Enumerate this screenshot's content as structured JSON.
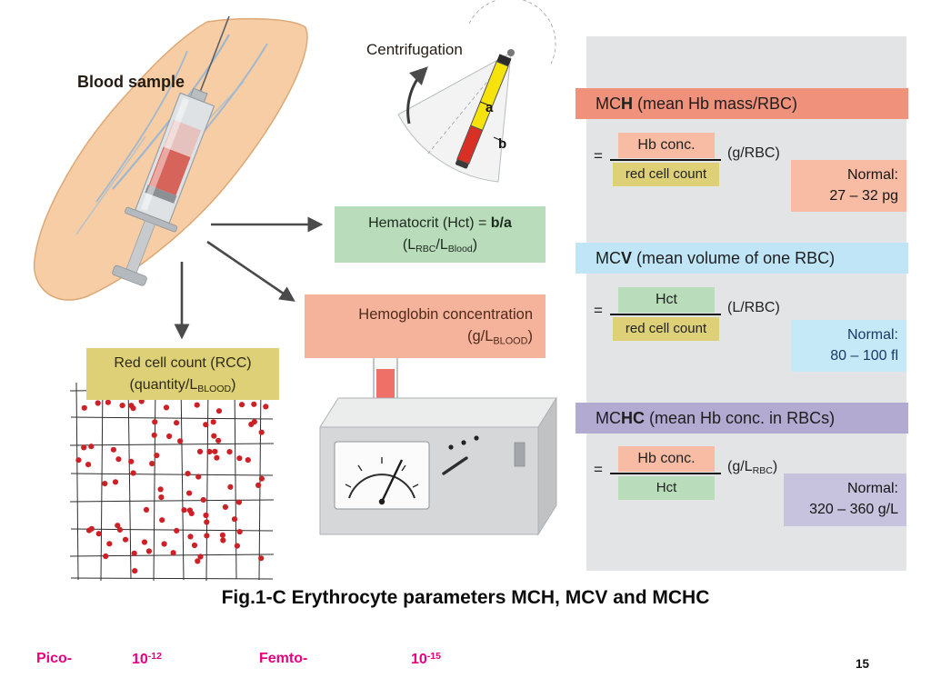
{
  "colors": {
    "salmon_header": "#f0917b",
    "salmon_box": "#f8bca4",
    "yellow_box": "#ddd077",
    "green_box": "#b9dcba",
    "blue_header": "#bfe5f6",
    "blue_box": "#c6e9f8",
    "purple_header": "#b2aad1",
    "purple_box": "#c7c2de",
    "panel_bg": "#e3e4e5",
    "magenta": "#e8007d",
    "rbc_dot": "#cc2127",
    "skin": "#f6cda5",
    "vein": "#8fb3d6"
  },
  "labels": {
    "blood_sample": "Blood sample",
    "centrifugation": "Centrifugation",
    "tube_a": "a",
    "tube_b": "b"
  },
  "boxes": {
    "hematocrit": {
      "pre": "Hematocrit (Hct) = ",
      "bold": "b/a",
      "l2p1": "(L",
      "l2s1": "RBC",
      "l2p2": "/L",
      "l2s2": "Blood",
      "l2p3": ")"
    },
    "hemoglobin": {
      "line1": "Hemoglobin concentration",
      "l2p1": "(g/L",
      "l2s1": "BLOOD",
      "l2p2": ")"
    },
    "rcc": {
      "line1": "Red cell count (RCC)",
      "l2p1": "(quantity/L",
      "l2s1": "BLOOD",
      "l2p2": ")"
    }
  },
  "panel": {
    "eq": "=",
    "mch": {
      "h_pre": "MC",
      "h_bold": "H",
      "h_rest": " (mean Hb mass/RBC)",
      "num": "Hb conc.",
      "den": "red cell count",
      "unit": "(g/RBC)",
      "normal_label": "Normal:",
      "normal_value": "27 – 32 pg"
    },
    "mcv": {
      "h_pre": "MC",
      "h_bold": "V",
      "h_rest": " (mean volume of one RBC)",
      "num": "Hct",
      "den": "red cell count",
      "unit": "(L/RBC)",
      "normal_label": "Normal:",
      "normal_value": "80 – 100 fl"
    },
    "mchc": {
      "h_pre": "MC",
      "h_bold": "HC",
      "h_rest": " (mean Hb conc. in RBCs)",
      "num": "Hb conc.",
      "den": "Hct",
      "u_p1": "(g/L",
      "u_s1": "RBC",
      "u_p2": ")",
      "normal_label": "Normal:",
      "normal_value": "320 – 360 g/L"
    }
  },
  "caption": "Fig.1-C Erythrocyte parameters MCH, MCV and MCHC",
  "footer": {
    "pico": "Pico-",
    "pico_base": "10",
    "pico_exp": "-12",
    "femto": "Femto-",
    "femto_base": "10",
    "femto_exp": "-15",
    "page": "15"
  }
}
